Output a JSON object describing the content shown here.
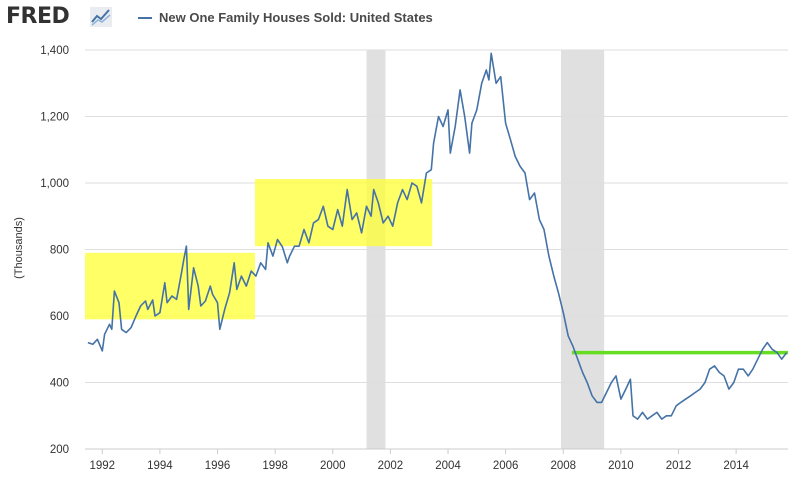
{
  "header": {
    "logo_text": "FRED",
    "logo_icon": "trend-chart-icon",
    "legend_label": "New One Family Houses Sold: United States"
  },
  "colors": {
    "series_line": "#4572a7",
    "recession_shade": "#e0e0e0",
    "highlight_yellow": "#ffff33",
    "highlight_green": "#66dd22",
    "grid": "#dedede"
  },
  "chart_data": {
    "type": "line",
    "title": "",
    "xlabel": "",
    "ylabel": "(Thousands)",
    "xlim": [
      1991.4,
      2015.8
    ],
    "ylim": [
      200,
      1400
    ],
    "yticks": [
      200,
      400,
      600,
      800,
      1000,
      1200,
      1400
    ],
    "ytick_labels": [
      "200",
      "400",
      "600",
      "800",
      "1,000",
      "1,200",
      "1,400"
    ],
    "xticks": [
      1992,
      1994,
      1996,
      1998,
      2000,
      2002,
      2004,
      2006,
      2008,
      2010,
      2012,
      2014
    ],
    "xtick_labels": [
      "1992",
      "1994",
      "1996",
      "1998",
      "2000",
      "2002",
      "2004",
      "2006",
      "2008",
      "2010",
      "2012",
      "2014"
    ],
    "grid": true,
    "legend": "top",
    "recessions": [
      {
        "start": 2001.17,
        "end": 2001.83
      },
      {
        "start": 2007.92,
        "end": 2009.42
      }
    ],
    "highlights": [
      {
        "type": "box",
        "x0": 1991.4,
        "x1": 1997.3,
        "y0": 590,
        "y1": 790,
        "color": "yellow"
      },
      {
        "type": "box",
        "x0": 1997.3,
        "x1": 2003.45,
        "y0": 810,
        "y1": 1012,
        "color": "yellow"
      },
      {
        "type": "hline",
        "x0": 2008.3,
        "x1": 2015.8,
        "y": 490,
        "color": "green"
      }
    ],
    "series": [
      {
        "name": "New One Family Houses Sold: United States",
        "points": [
          [
            1991.5,
            520
          ],
          [
            1991.67,
            515
          ],
          [
            1991.83,
            530
          ],
          [
            1992.0,
            495
          ],
          [
            1992.08,
            545
          ],
          [
            1992.25,
            575
          ],
          [
            1992.33,
            560
          ],
          [
            1992.42,
            675
          ],
          [
            1992.58,
            640
          ],
          [
            1992.67,
            560
          ],
          [
            1992.83,
            550
          ],
          [
            1993.0,
            565
          ],
          [
            1993.17,
            600
          ],
          [
            1993.33,
            630
          ],
          [
            1993.5,
            645
          ],
          [
            1993.58,
            620
          ],
          [
            1993.75,
            648
          ],
          [
            1993.83,
            600
          ],
          [
            1994.0,
            610
          ],
          [
            1994.17,
            700
          ],
          [
            1994.25,
            640
          ],
          [
            1994.42,
            660
          ],
          [
            1994.58,
            650
          ],
          [
            1994.75,
            730
          ],
          [
            1994.83,
            770
          ],
          [
            1994.92,
            810
          ],
          [
            1995.0,
            620
          ],
          [
            1995.17,
            745
          ],
          [
            1995.33,
            690
          ],
          [
            1995.42,
            630
          ],
          [
            1995.58,
            645
          ],
          [
            1995.75,
            690
          ],
          [
            1995.83,
            665
          ],
          [
            1996.0,
            640
          ],
          [
            1996.08,
            560
          ],
          [
            1996.25,
            620
          ],
          [
            1996.42,
            670
          ],
          [
            1996.58,
            760
          ],
          [
            1996.67,
            680
          ],
          [
            1996.83,
            720
          ],
          [
            1997.0,
            690
          ],
          [
            1997.17,
            735
          ],
          [
            1997.33,
            720
          ],
          [
            1997.5,
            760
          ],
          [
            1997.67,
            740
          ],
          [
            1997.75,
            820
          ],
          [
            1997.92,
            780
          ],
          [
            1998.08,
            830
          ],
          [
            1998.25,
            808
          ],
          [
            1998.42,
            760
          ],
          [
            1998.5,
            780
          ],
          [
            1998.67,
            810
          ],
          [
            1998.83,
            810
          ],
          [
            1999.0,
            860
          ],
          [
            1999.17,
            820
          ],
          [
            1999.33,
            880
          ],
          [
            1999.5,
            890
          ],
          [
            1999.67,
            930
          ],
          [
            1999.83,
            870
          ],
          [
            2000.0,
            860
          ],
          [
            2000.17,
            920
          ],
          [
            2000.33,
            870
          ],
          [
            2000.5,
            980
          ],
          [
            2000.67,
            890
          ],
          [
            2000.83,
            910
          ],
          [
            2001.0,
            850
          ],
          [
            2001.17,
            930
          ],
          [
            2001.33,
            900
          ],
          [
            2001.42,
            980
          ],
          [
            2001.58,
            940
          ],
          [
            2001.75,
            880
          ],
          [
            2001.92,
            900
          ],
          [
            2002.08,
            870
          ],
          [
            2002.25,
            940
          ],
          [
            2002.42,
            980
          ],
          [
            2002.58,
            950
          ],
          [
            2002.75,
            1000
          ],
          [
            2002.92,
            990
          ],
          [
            2003.08,
            940
          ],
          [
            2003.25,
            1030
          ],
          [
            2003.42,
            1040
          ],
          [
            2003.5,
            1120
          ],
          [
            2003.67,
            1200
          ],
          [
            2003.83,
            1170
          ],
          [
            2004.0,
            1220
          ],
          [
            2004.08,
            1090
          ],
          [
            2004.25,
            1170
          ],
          [
            2004.42,
            1280
          ],
          [
            2004.58,
            1200
          ],
          [
            2004.75,
            1090
          ],
          [
            2004.83,
            1180
          ],
          [
            2005.0,
            1220
          ],
          [
            2005.17,
            1300
          ],
          [
            2005.33,
            1340
          ],
          [
            2005.42,
            1310
          ],
          [
            2005.5,
            1390
          ],
          [
            2005.67,
            1300
          ],
          [
            2005.83,
            1320
          ],
          [
            2006.0,
            1180
          ],
          [
            2006.17,
            1130
          ],
          [
            2006.33,
            1080
          ],
          [
            2006.5,
            1050
          ],
          [
            2006.67,
            1030
          ],
          [
            2006.83,
            950
          ],
          [
            2007.0,
            970
          ],
          [
            2007.17,
            890
          ],
          [
            2007.33,
            860
          ],
          [
            2007.5,
            780
          ],
          [
            2007.67,
            720
          ],
          [
            2007.83,
            670
          ],
          [
            2008.0,
            610
          ],
          [
            2008.17,
            540
          ],
          [
            2008.33,
            510
          ],
          [
            2008.5,
            470
          ],
          [
            2008.67,
            430
          ],
          [
            2008.83,
            400
          ],
          [
            2009.0,
            360
          ],
          [
            2009.17,
            340
          ],
          [
            2009.33,
            340
          ],
          [
            2009.5,
            370
          ],
          [
            2009.67,
            400
          ],
          [
            2009.83,
            420
          ],
          [
            2010.0,
            350
          ],
          [
            2010.17,
            380
          ],
          [
            2010.33,
            410
          ],
          [
            2010.42,
            300
          ],
          [
            2010.58,
            290
          ],
          [
            2010.75,
            310
          ],
          [
            2010.92,
            290
          ],
          [
            2011.08,
            300
          ],
          [
            2011.25,
            310
          ],
          [
            2011.42,
            290
          ],
          [
            2011.58,
            300
          ],
          [
            2011.75,
            300
          ],
          [
            2011.92,
            330
          ],
          [
            2012.08,
            340
          ],
          [
            2012.25,
            350
          ],
          [
            2012.42,
            360
          ],
          [
            2012.58,
            370
          ],
          [
            2012.75,
            380
          ],
          [
            2012.92,
            400
          ],
          [
            2013.08,
            440
          ],
          [
            2013.25,
            450
          ],
          [
            2013.42,
            430
          ],
          [
            2013.58,
            420
          ],
          [
            2013.75,
            380
          ],
          [
            2013.92,
            400
          ],
          [
            2014.08,
            440
          ],
          [
            2014.25,
            440
          ],
          [
            2014.42,
            420
          ],
          [
            2014.58,
            440
          ],
          [
            2014.75,
            470
          ],
          [
            2014.92,
            500
          ],
          [
            2015.08,
            520
          ],
          [
            2015.25,
            500
          ],
          [
            2015.42,
            490
          ],
          [
            2015.58,
            470
          ],
          [
            2015.75,
            490
          ]
        ]
      }
    ]
  }
}
